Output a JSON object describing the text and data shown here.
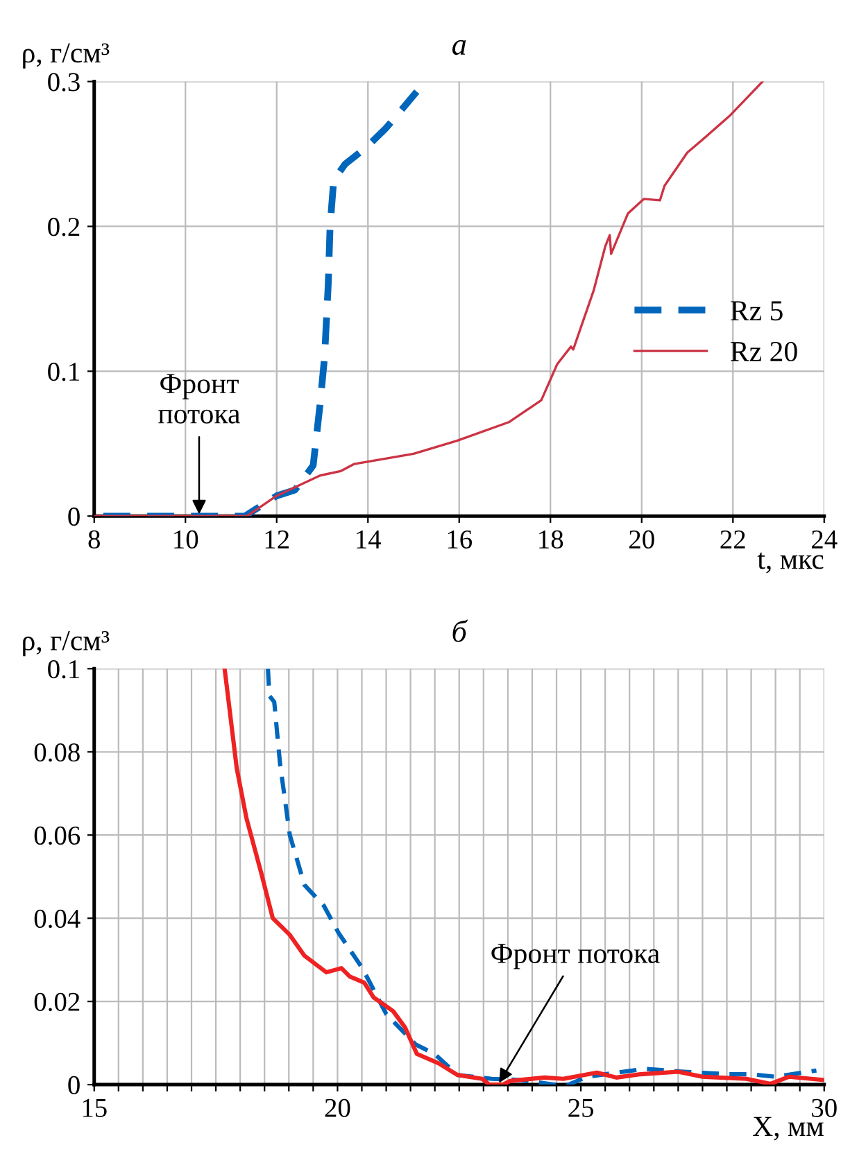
{
  "chart_data": [
    {
      "type": "line",
      "title": "а",
      "xlabel": "t, мкс",
      "ylabel": "ρ, г/см³",
      "xlim": [
        8,
        24
      ],
      "ylim": [
        0,
        0.3
      ],
      "xticks": [
        8,
        10,
        12,
        14,
        16,
        18,
        20,
        22,
        24
      ],
      "yticks": [
        0,
        0.1,
        0.2,
        0.3
      ],
      "grid": true,
      "legend": "right",
      "annotations": [
        {
          "text": "Фронт\nпотока",
          "x": 10.3,
          "y": 0
        }
      ],
      "series": [
        {
          "name": "Rz 5",
          "color": "#0066bb",
          "line_style": "dashed",
          "x": [
            8.2,
            11.3,
            12.0,
            12.4,
            12.8,
            12.95,
            13.05,
            13.13,
            13.17,
            13.25,
            13.5,
            13.98,
            14.4,
            15.07
          ],
          "values": [
            0,
            0,
            0.014,
            0.018,
            0.035,
            0.077,
            0.11,
            0.16,
            0.2,
            0.232,
            0.243,
            0.255,
            0.268,
            0.293
          ]
        },
        {
          "name": "Rz 20",
          "color": "#cc3344",
          "line_style": "solid",
          "x": [
            8.0,
            11.35,
            12.0,
            12.95,
            13.4,
            13.7,
            15.0,
            15.95,
            17.1,
            17.8,
            18.15,
            18.45,
            18.5,
            18.95,
            19.2,
            19.3,
            19.33,
            19.7,
            20.05,
            20.4,
            20.5,
            21.0,
            21.3,
            21.95,
            22.65
          ],
          "values": [
            0,
            0,
            0.014,
            0.028,
            0.031,
            0.036,
            0.043,
            0.052,
            0.065,
            0.08,
            0.105,
            0.117,
            0.115,
            0.156,
            0.186,
            0.194,
            0.181,
            0.209,
            0.219,
            0.218,
            0.228,
            0.251,
            0.259,
            0.277,
            0.3
          ]
        }
      ]
    },
    {
      "type": "line",
      "title": "б",
      "xlabel": "X, мм",
      "ylabel": "ρ, г/см³",
      "xlim": [
        15,
        30
      ],
      "ylim": [
        0,
        0.1
      ],
      "xticks": [
        15,
        {
          "value": 15.5,
          "label": null
        },
        {
          "value": 16,
          "label": null
        },
        {
          "value": 16.5,
          "label": null
        },
        {
          "value": 17,
          "label": null
        },
        {
          "value": 17.5,
          "label": null
        },
        {
          "value": 18,
          "label": null
        },
        {
          "value": 18.5,
          "label": null
        },
        {
          "value": 19,
          "label": null
        },
        {
          "value": 19.5,
          "label": null
        },
        20,
        {
          "value": 20.5,
          "label": null
        },
        {
          "value": 21,
          "label": null
        },
        {
          "value": 21.5,
          "label": null
        },
        {
          "value": 22,
          "label": null
        },
        {
          "value": 22.5,
          "label": null
        },
        {
          "value": 23,
          "label": null
        },
        {
          "value": 23.5,
          "label": null
        },
        {
          "value": 24,
          "label": null
        },
        {
          "value": 24.5,
          "label": null
        },
        25,
        {
          "value": 25.5,
          "label": null
        },
        {
          "value": 26,
          "label": null
        },
        {
          "value": 26.5,
          "label": null
        },
        {
          "value": 27,
          "label": null
        },
        {
          "value": 27.5,
          "label": null
        },
        {
          "value": 28,
          "label": null
        },
        {
          "value": 28.5,
          "label": null
        },
        {
          "value": 29,
          "label": null
        },
        {
          "value": 29.5,
          "label": null
        },
        30
      ],
      "yticks": [
        0,
        0.02,
        0.04,
        0.06,
        0.08,
        0.1
      ],
      "grid": true,
      "annotations": [
        {
          "text": "Фронт потока",
          "x": 23.3,
          "y": 0
        }
      ],
      "series": [
        {
          "color": "#0066bb",
          "line_style": "dashed",
          "x": [
            18.57,
            18.6,
            18.7,
            18.82,
            19.02,
            19.32,
            19.72,
            20.02,
            20.51,
            21.0,
            21.6,
            21.99,
            22.47,
            23.17,
            23.76,
            24.45,
            24.75,
            25.13,
            26.32,
            27.11,
            28.0,
            28.5,
            29.0,
            29.84
          ],
          "values": [
            0.1,
            0.0935,
            0.092,
            0.077,
            0.06,
            0.048,
            0.043,
            0.0365,
            0.028,
            0.017,
            0.0097,
            0.0074,
            0.0023,
            0.0014,
            0.0011,
            0,
            0,
            0.0019,
            0.0038,
            0.0031,
            0.0025,
            0.0025,
            0.0019,
            0.0034
          ]
        },
        {
          "color": "#ee2222",
          "line_style": "solid",
          "x": [
            17.68,
            17.93,
            18.13,
            18.43,
            18.67,
            19.02,
            19.32,
            19.77,
            20.08,
            20.25,
            20.55,
            20.74,
            21.14,
            21.39,
            21.63,
            22.08,
            22.47,
            22.97,
            23.12,
            23.4,
            23.55,
            24.25,
            24.64,
            25.33,
            25.73,
            26.23,
            27.0,
            27.5,
            28.4,
            28.9,
            29.28,
            30.0
          ],
          "values": [
            0.1,
            0.076,
            0.064,
            0.051,
            0.04,
            0.036,
            0.031,
            0.027,
            0.028,
            0.026,
            0.0245,
            0.021,
            0.0177,
            0.0137,
            0.0074,
            0.0051,
            0.0023,
            0.0014,
            0,
            0,
            0.0009,
            0.0017,
            0.0014,
            0.0029,
            0.0017,
            0.0025,
            0.0031,
            0.0019,
            0.0014,
            0.0002,
            0.0019,
            0.0011
          ]
        }
      ]
    }
  ]
}
